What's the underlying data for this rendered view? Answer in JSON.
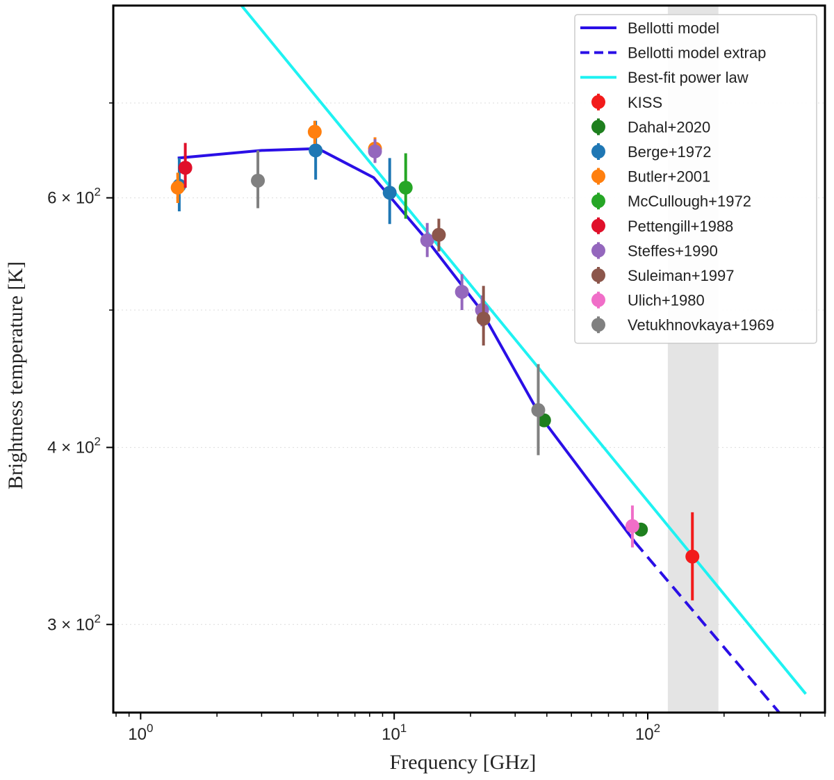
{
  "chart_data": {
    "type": "scatter",
    "xlabel": "Frequency [GHz]",
    "ylabel": "Brightness temperature [K]",
    "xscale": "log",
    "yscale": "log",
    "xlim": [
      0.78,
      500
    ],
    "ylim": [
      260,
      820
    ],
    "x_ticks": [
      {
        "value": 1,
        "base": "10",
        "exp": "0"
      },
      {
        "value": 10,
        "base": "10",
        "exp": "1"
      },
      {
        "value": 100,
        "base": "10",
        "exp": "2"
      }
    ],
    "y_ticks": [
      {
        "value": 300,
        "mant": "3",
        "base": "10",
        "exp": "2"
      },
      {
        "value": 400,
        "mant": "4",
        "base": "10",
        "exp": "2"
      },
      {
        "value": 600,
        "mant": "6",
        "base": "10",
        "exp": "2"
      }
    ],
    "y_grid": [
      300,
      400,
      500,
      600,
      700
    ],
    "shaded_band": {
      "x": [
        120,
        190
      ],
      "color": "#e4e4e4"
    },
    "legend_position": "top-right",
    "lines": [
      {
        "name": "Bellotti model",
        "color": "#2a0fe6",
        "style": "solid",
        "points": [
          [
            1.4,
            640
          ],
          [
            3.0,
            648
          ],
          [
            5.0,
            650
          ],
          [
            8.3,
            620
          ],
          [
            13.5,
            560
          ],
          [
            22,
            500
          ],
          [
            38,
            420
          ],
          [
            89,
            343
          ]
        ]
      },
      {
        "name": "Bellotti model extrap",
        "color": "#2a0fe6",
        "style": "dashed",
        "points": [
          [
            89,
            343
          ],
          [
            330,
            260
          ]
        ]
      },
      {
        "name": "Best-fit power law",
        "color": "#1ff2f2",
        "style": "solid",
        "points": [
          [
            2.5,
            820
          ],
          [
            420,
            268
          ]
        ]
      }
    ],
    "series": [
      {
        "name": "KISS",
        "color": "#f21b1b",
        "points": [
          {
            "x": 150,
            "y": 335,
            "yerr": [
              312,
              360
            ]
          }
        ]
      },
      {
        "name": "Dahal+2020",
        "color": "#1e7f1e",
        "points": [
          {
            "x": 39,
            "y": 418
          },
          {
            "x": 94,
            "y": 350
          }
        ]
      },
      {
        "name": "Berge+1972",
        "color": "#1f77b4",
        "points": [
          {
            "x": 1.42,
            "y": 612,
            "yerr": [
              587,
              640
            ]
          },
          {
            "x": 4.9,
            "y": 648,
            "yerr": [
              618,
              680
            ]
          },
          {
            "x": 9.6,
            "y": 605,
            "yerr": [
              575,
              640
            ]
          }
        ]
      },
      {
        "name": "Butler+2001",
        "color": "#ff7f0e",
        "points": [
          {
            "x": 1.4,
            "y": 610,
            "yerr": [
              595,
              625
            ]
          },
          {
            "x": 4.86,
            "y": 668,
            "yerr": [
              655,
              680
            ]
          },
          {
            "x": 8.4,
            "y": 650,
            "yerr": [
              638,
              662
            ]
          }
        ]
      },
      {
        "name": "McCullough+1972",
        "color": "#26a626",
        "points": [
          {
            "x": 11.1,
            "y": 610,
            "yerr": [
              580,
              645
            ]
          }
        ]
      },
      {
        "name": "Pettengill+1988",
        "color": "#e0102a",
        "points": [
          {
            "x": 1.5,
            "y": 630,
            "yerr": [
              610,
              656
            ]
          }
        ]
      },
      {
        "name": "Steffes+1990",
        "color": "#9467bd",
        "points": [
          {
            "x": 8.4,
            "y": 647,
            "yerr": [
              635,
              660
            ]
          },
          {
            "x": 13.5,
            "y": 560,
            "yerr": [
              545,
              576
            ]
          },
          {
            "x": 18.5,
            "y": 515,
            "yerr": [
              500,
              530
            ]
          },
          {
            "x": 22.2,
            "y": 500,
            "yerr": [
              487,
              512
            ]
          }
        ]
      },
      {
        "name": "Suleiman+1997",
        "color": "#8c564b",
        "points": [
          {
            "x": 15,
            "y": 565,
            "yerr": [
              550,
              580
            ]
          },
          {
            "x": 22.5,
            "y": 493,
            "yerr": [
              472,
              520
            ]
          }
        ]
      },
      {
        "name": "Ulich+1980",
        "color": "#f06ec8",
        "points": [
          {
            "x": 87,
            "y": 352,
            "yerr": [
              340,
              364
            ]
          }
        ]
      },
      {
        "name": "Vetukhnovkaya+1969",
        "color": "#808080",
        "points": [
          {
            "x": 2.9,
            "y": 617,
            "yerr": [
              590,
              648
            ]
          },
          {
            "x": 37,
            "y": 425,
            "yerr": [
              395,
              458
            ]
          }
        ]
      }
    ]
  }
}
